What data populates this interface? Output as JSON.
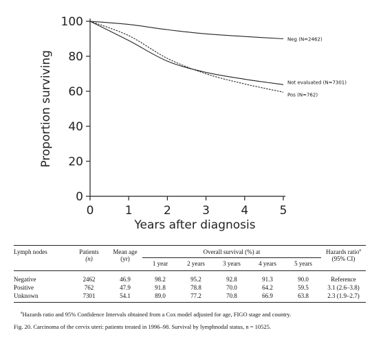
{
  "chart_data": {
    "type": "line",
    "xlabel": "Years after diagnosis",
    "ylabel": "Proportion surviving",
    "xlim": [
      0,
      5
    ],
    "ylim": [
      0,
      100
    ],
    "x_ticks": [
      "0",
      "1",
      "2",
      "3",
      "4",
      "5"
    ],
    "y_ticks": [
      "0",
      "20",
      "40",
      "60",
      "80",
      "100"
    ],
    "grid": false,
    "series": [
      {
        "name": "Neg (N=2462)",
        "style": "solid",
        "x": [
          0,
          1,
          2,
          3,
          4,
          5
        ],
        "y": [
          100,
          98.2,
          95.2,
          92.8,
          91.3,
          90.0
        ]
      },
      {
        "name": "Not evaluated (N=7301)",
        "style": "solid",
        "x": [
          0,
          1,
          2,
          3,
          4,
          5
        ],
        "y": [
          100,
          89.0,
          77.2,
          70.8,
          66.9,
          63.8
        ]
      },
      {
        "name": "Pos (N=762)",
        "style": "dashed",
        "x": [
          0,
          1,
          2,
          3,
          4,
          5
        ],
        "y": [
          100,
          91.8,
          78.8,
          70.0,
          64.2,
          59.5
        ]
      }
    ]
  },
  "table": {
    "col_lymph": "Lymph nodes",
    "col_patients": "Patients",
    "col_patients_sub": "(n)",
    "col_age": "Mean age",
    "col_age_sub": "(yr)",
    "col_survival": "Overall survival (%) at",
    "col_hazard": "Hazards ratio",
    "col_hazard_sup": "a",
    "col_hazard_sub": "(95% CI)",
    "years": [
      "1 year",
      "2 years",
      "3 years",
      "4 years",
      "5 years"
    ],
    "rows": [
      {
        "label": "Negative",
        "patients": "2462",
        "age": "46.9",
        "y1": "98.2",
        "y2": "95.2",
        "y3": "92.8",
        "y4": "91.3",
        "y5": "90.0",
        "hazard": "Reference"
      },
      {
        "label": "Positive",
        "patients": "762",
        "age": "47.9",
        "y1": "91.8",
        "y2": "78.8",
        "y3": "70.0",
        "y4": "64.2",
        "y5": "59.5",
        "hazard": "3.1 (2.6–3.8)"
      },
      {
        "label": "Unknown",
        "patients": "7301",
        "age": "54.1",
        "y1": "89.0",
        "y2": "77.2",
        "y3": "70.8",
        "y4": "66.9",
        "y5": "63.8",
        "hazard": "2.3 (1.9–2.7)"
      }
    ]
  },
  "footnote_sup": "a",
  "footnote": "Hazards ratio and 95% Confidence Intervals obtained from a Cox model adjusted for age, FIGO stage and country.",
  "caption": "Fig. 20. Carcinoma of the cervix uteri: patients treated in 1996–98. Survival by lymphnodal status, n = 10525."
}
